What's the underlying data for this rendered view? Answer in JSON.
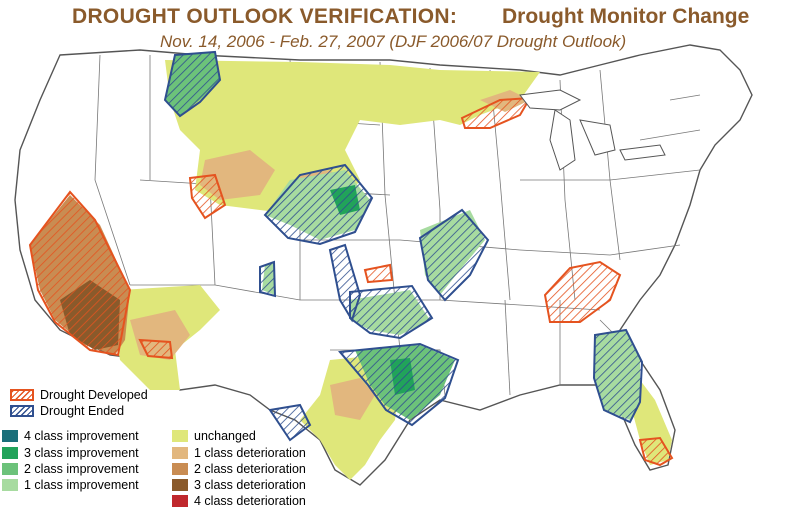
{
  "title": {
    "main": "DROUGHT OUTLOOK VERIFICATION:",
    "sub": "Drought Monitor Change",
    "dates": "Nov. 14, 2006 - Feb. 27, 2007 (DJF 2006/07 Drought Outlook)"
  },
  "legend": {
    "hatched": [
      {
        "label": "Drought Developed",
        "color": "#e5531f"
      },
      {
        "label": "Drought Ended",
        "color": "#2f4f8f"
      }
    ],
    "improvement": [
      {
        "label": "4 class improvement",
        "color": "#1a6f7a"
      },
      {
        "label": "3 class improvement",
        "color": "#21a35a"
      },
      {
        "label": "2 class improvement",
        "color": "#6cc27a"
      },
      {
        "label": "1 class improvement",
        "color": "#a7dba0"
      }
    ],
    "deterioration": [
      {
        "label": "unchanged",
        "color": "#dfe77a"
      },
      {
        "label": "1 class deterioration",
        "color": "#e2b77e"
      },
      {
        "label": "2 class deterioration",
        "color": "#c98c52"
      },
      {
        "label": "3 class deterioration",
        "color": "#8a5a2b"
      },
      {
        "label": "4 class deterioration",
        "color": "#c0282d"
      }
    ]
  },
  "colors": {
    "title": "#8a5a2b",
    "state_lines": "#555555",
    "developed_outline": "#e5531f",
    "ended_outline": "#2f4f8f"
  }
}
